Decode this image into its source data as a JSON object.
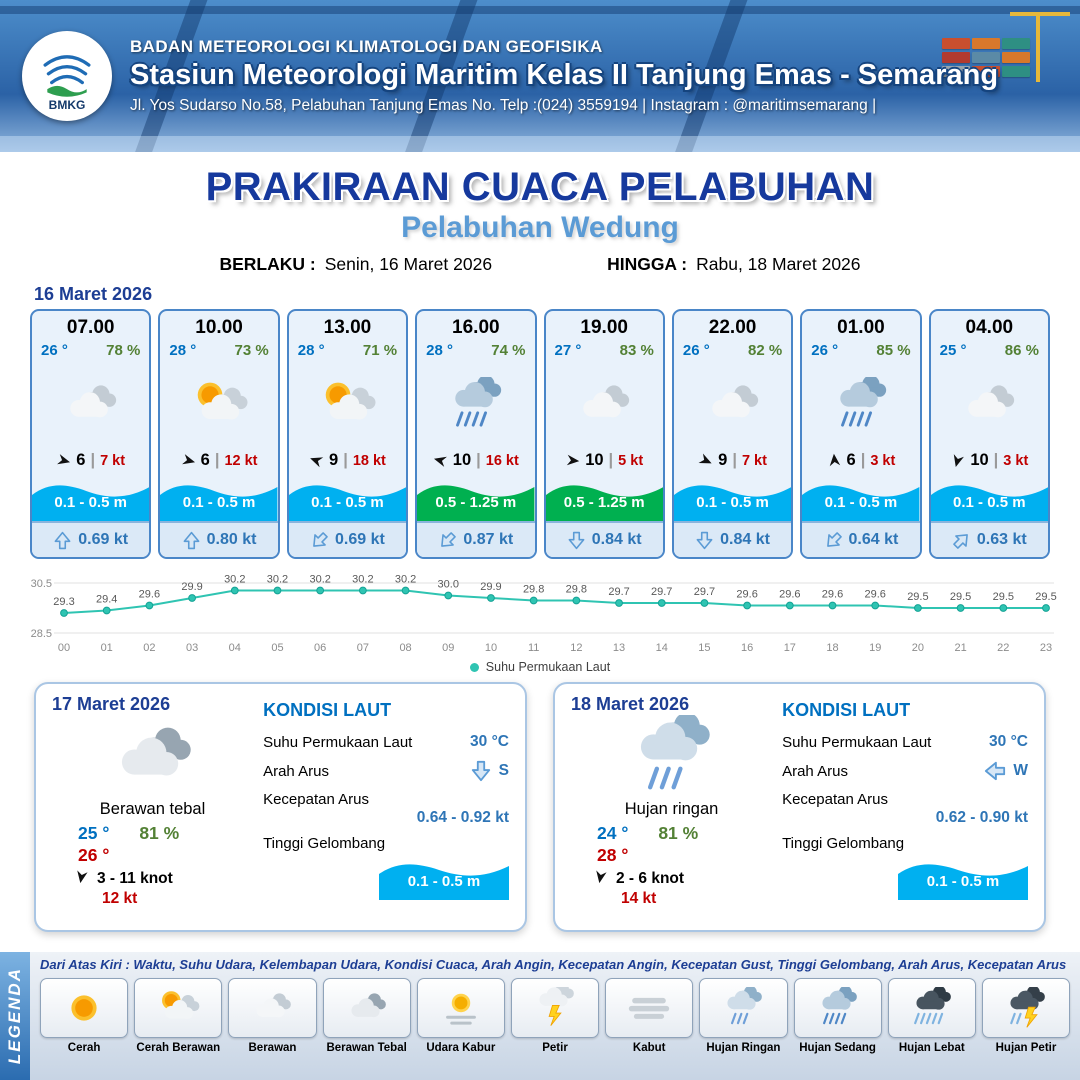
{
  "header": {
    "logo": "BMKG",
    "agency": "BADAN METEOROLOGI KLIMATOLOGI DAN GEOFISIKA",
    "station": "Stasiun Meteorologi Maritim Kelas II Tanjung Emas - Semarang",
    "address": "Jl. Yos Sudarso No.58, Pelabuhan Tanjung Emas No. Telp :(024) 3559194 | Instagram : @maritimsemarang |"
  },
  "title": {
    "main": "PRAKIRAAN CUACA PELABUHAN",
    "port": "Pelabuhan Wedung",
    "valid_from_label": "BERLAKU :",
    "valid_from": "Senin, 16 Maret 2026",
    "valid_to_label": "HINGGA :",
    "valid_to": "Rabu, 18 Maret 2026"
  },
  "hourly": {
    "date": "16 Maret 2026",
    "cards": [
      {
        "time": "07.00",
        "temp": "26 °",
        "rh": "78 %",
        "icon": "berawan",
        "wind_rot": 15,
        "wind": "6",
        "gust": "7 kt",
        "wave": "0.1 - 0.5 m",
        "wave_color": "#00b0f0",
        "cur_rot": 0,
        "cur": "0.69 kt"
      },
      {
        "time": "10.00",
        "temp": "28 °",
        "rh": "73 %",
        "icon": "cerah-berawan",
        "wind_rot": 15,
        "wind": "6",
        "gust": "12 kt",
        "wave": "0.1 - 0.5 m",
        "wave_color": "#00b0f0",
        "cur_rot": 0,
        "cur": "0.80 kt"
      },
      {
        "time": "13.00",
        "temp": "28 °",
        "rh": "71 %",
        "icon": "cerah-berawan",
        "wind_rot": 200,
        "wind": "9",
        "gust": "18 kt",
        "wave": "0.1 - 0.5 m",
        "wave_color": "#00b0f0",
        "cur_rot": 225,
        "cur": "0.69 kt"
      },
      {
        "time": "16.00",
        "temp": "28 °",
        "rh": "74 %",
        "icon": "hujan-sedang",
        "wind_rot": 195,
        "wind": "10",
        "gust": "16 kt",
        "wave": "0.5 - 1.25 m",
        "wave_color": "#00b050",
        "cur_rot": 225,
        "cur": "0.87 kt"
      },
      {
        "time": "19.00",
        "temp": "27 °",
        "rh": "83 %",
        "icon": "berawan",
        "wind_rot": 5,
        "wind": "10",
        "gust": "5 kt",
        "wave": "0.5 - 1.25 m",
        "wave_color": "#00b050",
        "cur_rot": 180,
        "cur": "0.84 kt"
      },
      {
        "time": "22.00",
        "temp": "26 °",
        "rh": "82 %",
        "icon": "berawan",
        "wind_rot": 25,
        "wind": "9",
        "gust": "7 kt",
        "wave": "0.1 - 0.5 m",
        "wave_color": "#00b0f0",
        "cur_rot": 180,
        "cur": "0.84 kt"
      },
      {
        "time": "01.00",
        "temp": "26 °",
        "rh": "85 %",
        "icon": "hujan-sedang",
        "wind_rot": -95,
        "wind": "6",
        "gust": "3 kt",
        "wave": "0.1 - 0.5 m",
        "wave_color": "#00b0f0",
        "cur_rot": 225,
        "cur": "0.64 kt"
      },
      {
        "time": "04.00",
        "temp": "25 °",
        "rh": "86 %",
        "icon": "berawan",
        "wind_rot": 105,
        "wind": "10",
        "gust": "3 kt",
        "wave": "0.1 - 0.5 m",
        "wave_color": "#00b0f0",
        "cur_rot": 45,
        "cur": "0.63 kt"
      }
    ]
  },
  "chart_data": {
    "type": "line",
    "title": "Suhu Permukaan Laut",
    "x": [
      "00",
      "01",
      "02",
      "03",
      "04",
      "05",
      "06",
      "07",
      "08",
      "09",
      "10",
      "11",
      "12",
      "13",
      "14",
      "15",
      "16",
      "17",
      "18",
      "19",
      "20",
      "21",
      "22",
      "23"
    ],
    "values": [
      29.3,
      29.4,
      29.6,
      29.9,
      30.2,
      30.2,
      30.2,
      30.2,
      30.2,
      30.0,
      29.9,
      29.8,
      29.8,
      29.7,
      29.7,
      29.7,
      29.6,
      29.6,
      29.6,
      29.6,
      29.5,
      29.5,
      29.5,
      29.5
    ],
    "xlabel": "",
    "ylabel": "",
    "ylim": [
      28.5,
      30.5
    ],
    "line_color": "#2fc4b2",
    "grid": true,
    "legend_position": "bottom"
  },
  "sea": {
    "title": "KONDISI LAUT",
    "sst_label": "Suhu Permukaan Laut",
    "dir_label": "Arah Arus",
    "speed_label": "Kecepatan Arus",
    "wave_label": "Tinggi Gelombang"
  },
  "daily": [
    {
      "date": "17 Maret 2026",
      "icon": "berawan-tebal",
      "condition": "Berawan tebal",
      "temp_min": "25 °",
      "rh": "81 %",
      "temp_max": "26 °",
      "wind_rot": 100,
      "wind": "3 - 11 knot",
      "gust": "12 kt",
      "sst": "30 °C",
      "current_rot": 180,
      "current_dir": "S",
      "current_speed": "0.64 - 0.92 kt",
      "wave": "0.1 - 0.5 m",
      "wave_color": "#00b0f0"
    },
    {
      "date": "18 Maret 2026",
      "icon": "hujan-ringan",
      "condition": "Hujan ringan",
      "temp_min": "24 °",
      "rh": "81 %",
      "temp_max": "28 °",
      "wind_rot": 100,
      "wind": "2 - 6 knot",
      "gust": "14 kt",
      "sst": "30 °C",
      "current_rot": 270,
      "current_dir": "W",
      "current_speed": "0.62 - 0.90 kt",
      "wave": "0.1 - 0.5 m",
      "wave_color": "#00b0f0"
    }
  ],
  "legend": {
    "title": "LEGENDA",
    "note": "Dari Atas Kiri : Waktu, Suhu Udara, Kelembapan Udara, Kondisi Cuaca, Arah Angin, Kecepatan Angin, Kecepatan Gust, Tinggi Gelombang, Arah Arus, Kecepatan Arus",
    "items": [
      {
        "icon": "cerah",
        "label": "Cerah"
      },
      {
        "icon": "cerah-berawan",
        "label": "Cerah Berawan"
      },
      {
        "icon": "berawan",
        "label": "Berawan"
      },
      {
        "icon": "berawan-tebal",
        "label": "Berawan Tebal"
      },
      {
        "icon": "udara-kabur",
        "label": "Udara Kabur"
      },
      {
        "icon": "petir",
        "label": "Petir"
      },
      {
        "icon": "kabut",
        "label": "Kabut"
      },
      {
        "icon": "hujan-ringan",
        "label": "Hujan Ringan"
      },
      {
        "icon": "hujan-sedang",
        "label": "Hujan Sedang"
      },
      {
        "icon": "hujan-lebat",
        "label": "Hujan Lebat"
      },
      {
        "icon": "hujan-petir",
        "label": "Hujan Petir"
      }
    ]
  }
}
